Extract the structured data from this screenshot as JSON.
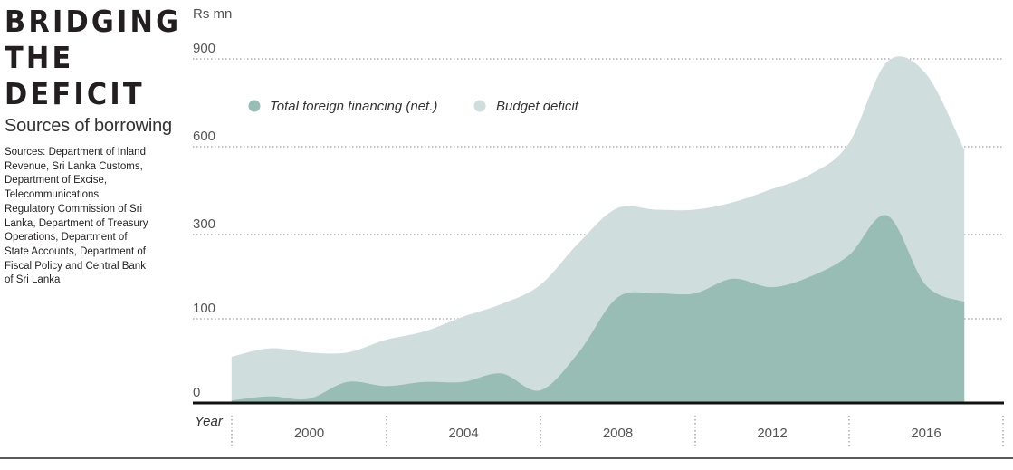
{
  "header": {
    "title_lines": [
      "BRIDGING",
      "THE",
      "DEFICIT"
    ],
    "subtitle": "Sources of borrowing",
    "sources": "Sources: Department of Inland Revenue, Sri Lanka Customs, Department of Excise, Telecommunications Regulatory Commission of Sri Lanka, Department of Treasury Operations, Department of State Accounts, Department of Fiscal Policy and Central Bank of Sri Lanka"
  },
  "colors": {
    "budget_deficit": "#cfdedd",
    "foreign_financing": "#97bdb4",
    "gridline": "#888888",
    "axis": "#111111"
  },
  "chart_data": {
    "type": "area",
    "ylabel": "Rs mn",
    "xlabel": "Year",
    "y_ticks": [
      0,
      100,
      300,
      600,
      900
    ],
    "x_ticks": [
      "2000",
      "2004",
      "2008",
      "2012",
      "2016"
    ],
    "grid": true,
    "legend_placement": "top-left",
    "x": [
      1998,
      1999,
      2000,
      2001,
      2002,
      2003,
      2004,
      2005,
      2006,
      2007,
      2008,
      2009,
      2010,
      2011,
      2012,
      2013,
      2014,
      2015,
      2016,
      2017
    ],
    "series": [
      {
        "name": "Budget deficit",
        "values": [
          55,
          65,
          60,
          60,
          75,
          85,
          105,
          135,
          180,
          280,
          390,
          385,
          385,
          410,
          455,
          505,
          610,
          890,
          850,
          590
        ]
      },
      {
        "name": "Total foreign financing (net.)",
        "values": [
          3,
          8,
          5,
          25,
          20,
          25,
          25,
          35,
          15,
          60,
          150,
          160,
          160,
          195,
          175,
          200,
          250,
          365,
          180,
          140
        ]
      }
    ]
  }
}
